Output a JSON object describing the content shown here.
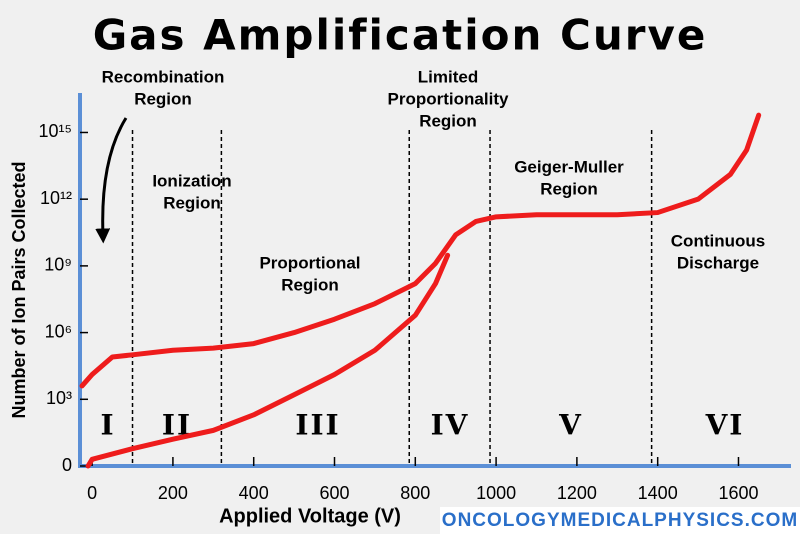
{
  "chart_data": {
    "type": "line",
    "title": "Gas Amplification Curve",
    "x_label": "Applied Voltage (V)",
    "y_label": "Number of Ion Pairs Collected",
    "footer": "ONCOLOGYMEDICALPHYSICS.COM",
    "xlim": [
      -30,
      1730
    ],
    "xticks": [
      0,
      200,
      400,
      600,
      800,
      1000,
      1200,
      1400,
      1600
    ],
    "ylim": [
      1,
      1e+17
    ],
    "log_y": true,
    "yticks": [
      {
        "value": 1,
        "label": "0"
      },
      {
        "value": 1000,
        "label": "10³"
      },
      {
        "value": 1000000,
        "label": "10⁶"
      },
      {
        "value": 1000000000,
        "label": "10⁹"
      },
      {
        "value": 1000000000000,
        "label": "10¹²"
      },
      {
        "value": 1000000000000000,
        "label": "10¹⁵"
      }
    ],
    "boundaries": [
      100,
      320,
      785,
      985,
      1385
    ],
    "regions": [
      {
        "name": [
          "Recombination",
          "Region"
        ],
        "numeral": "I"
      },
      {
        "name": [
          "Ionization",
          "Region"
        ],
        "numeral": "II"
      },
      {
        "name": [
          "Proportional",
          "Region"
        ],
        "numeral": "III"
      },
      {
        "name": [
          "Limited",
          "Proportionality",
          "Region"
        ],
        "numeral": "IV"
      },
      {
        "name": [
          "Geiger-Muller",
          "Region"
        ],
        "numeral": "V"
      },
      {
        "name": [
          "Continuous",
          "Discharge"
        ],
        "numeral": "VI"
      }
    ],
    "series": [
      {
        "color": "#ee1c1c",
        "x": [
          -25,
          0,
          50,
          100,
          200,
          300,
          400,
          500,
          600,
          700,
          800,
          850,
          900,
          950,
          1000,
          1100,
          1200,
          1300,
          1400,
          1500,
          1580,
          1620,
          1650
        ],
        "values": [
          4000,
          13000,
          80000,
          100000,
          160000,
          200000,
          320000,
          1000000,
          4000000,
          20000000,
          160000000,
          1300000000,
          25000000000,
          100000000000,
          160000000000,
          200000000000,
          200000000000,
          200000000000,
          250000000000,
          1000000000000,
          13000000000000,
          160000000000000,
          6000000000000000
        ]
      },
      {
        "color": "#ee1c1c",
        "x": [
          -10,
          0,
          100,
          200,
          300,
          400,
          500,
          600,
          700,
          800,
          850,
          880
        ],
        "values": [
          1,
          2,
          6,
          16,
          40,
          200,
          1600,
          13000,
          160000,
          6000000,
          160000000,
          3000000000
        ]
      }
    ]
  }
}
